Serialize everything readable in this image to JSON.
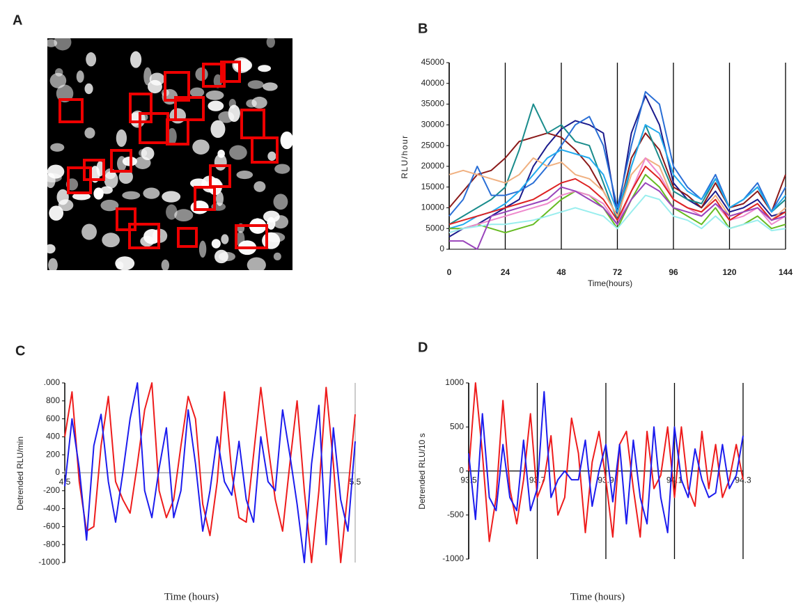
{
  "image_panel": {
    "panel_label": "A"
  },
  "chart_data": [
    {
      "type": "line",
      "panel_label": "B",
      "y_label": "RLU/hour",
      "x_label": "Time(hours)",
      "xlim": [
        0,
        144
      ],
      "xticks": [
        0,
        24,
        48,
        72,
        96,
        120,
        144
      ],
      "xgrid": true,
      "ylim": [
        0,
        45000
      ],
      "yticks": [
        0,
        5000,
        10000,
        15000,
        20000,
        25000,
        30000,
        35000,
        40000,
        45000
      ],
      "x": [
        0,
        6,
        12,
        18,
        24,
        30,
        36,
        42,
        48,
        54,
        60,
        66,
        72,
        78,
        84,
        90,
        96,
        102,
        108,
        114,
        120,
        126,
        132,
        138,
        144
      ],
      "series": [
        {
          "color": "#1a1a8c",
          "values": [
            3000,
            5000,
            6000,
            8000,
            10000,
            12000,
            20000,
            25000,
            29000,
            31000,
            30000,
            28000,
            8000,
            28000,
            37000,
            30000,
            16000,
            12000,
            10000,
            14000,
            9000,
            10000,
            12000,
            8000,
            9000
          ]
        },
        {
          "color": "#8b1a1a",
          "values": [
            10000,
            14000,
            18000,
            19000,
            22000,
            26000,
            27000,
            28000,
            27000,
            24000,
            20000,
            14000,
            8000,
            22000,
            28000,
            24000,
            15000,
            13000,
            10000,
            16000,
            10000,
            11000,
            14000,
            9000,
            18000
          ]
        },
        {
          "color": "#1a8c8c",
          "values": [
            6000,
            8000,
            10000,
            12000,
            15000,
            24000,
            35000,
            28000,
            30000,
            26000,
            25000,
            16000,
            7000,
            20000,
            30000,
            22000,
            14000,
            12000,
            11000,
            17000,
            10000,
            12000,
            15000,
            9000,
            12000
          ]
        },
        {
          "color": "#2a6fd6",
          "values": [
            8000,
            12000,
            20000,
            13000,
            13000,
            14000,
            16000,
            20000,
            25000,
            30000,
            32000,
            25000,
            10000,
            25000,
            38000,
            35000,
            20000,
            15000,
            12000,
            18000,
            10000,
            12000,
            16000,
            9000,
            15000
          ]
        },
        {
          "color": "#f0b080",
          "values": [
            18000,
            19000,
            18000,
            17000,
            16000,
            18000,
            22000,
            20000,
            21000,
            18000,
            17000,
            14000,
            8000,
            18000,
            22000,
            20000,
            12000,
            10000,
            9000,
            13000,
            8000,
            9000,
            11000,
            7000,
            10000
          ]
        },
        {
          "color": "#22aaee",
          "values": [
            5000,
            6000,
            8000,
            9000,
            11000,
            14000,
            18000,
            22000,
            24000,
            23000,
            22000,
            18000,
            9000,
            20000,
            30000,
            28000,
            18000,
            14000,
            12000,
            17000,
            10000,
            12000,
            15000,
            9000,
            13000
          ]
        },
        {
          "color": "#66bb22",
          "values": [
            5000,
            5000,
            6000,
            5000,
            4000,
            5000,
            6000,
            9000,
            12000,
            14000,
            13000,
            10000,
            5000,
            12000,
            18000,
            15000,
            10000,
            8000,
            6000,
            10000,
            5000,
            6000,
            8000,
            5000,
            6000
          ]
        },
        {
          "color": "#ee88cc",
          "values": [
            4000,
            5000,
            6000,
            7000,
            8000,
            9000,
            10000,
            11000,
            13000,
            14000,
            13000,
            11000,
            6000,
            14000,
            22000,
            18000,
            12000,
            10000,
            8000,
            11000,
            7000,
            8000,
            10000,
            6000,
            8000
          ]
        },
        {
          "color": "#dd2222",
          "values": [
            6000,
            7000,
            8000,
            9000,
            10000,
            11000,
            12000,
            14000,
            16000,
            17000,
            15000,
            12000,
            7000,
            14000,
            20000,
            17000,
            12000,
            10000,
            9000,
            12000,
            7000,
            9000,
            11000,
            7000,
            9000
          ]
        },
        {
          "color": "#99eeee",
          "values": [
            4000,
            5000,
            5500,
            6000,
            6000,
            6500,
            7000,
            8000,
            9000,
            10000,
            9000,
            8000,
            5000,
            9000,
            13000,
            12000,
            8000,
            7000,
            5000,
            8000,
            5000,
            6000,
            7000,
            4500,
            5000
          ]
        },
        {
          "color": "#9944bb",
          "values": [
            2000,
            2000,
            0,
            8000,
            9000,
            10000,
            11000,
            12000,
            15000,
            14000,
            12000,
            10000,
            6000,
            12000,
            16000,
            14000,
            10000,
            9000,
            8000,
            11000,
            8000,
            9000,
            10000,
            7000,
            8000
          ]
        }
      ]
    },
    {
      "type": "line",
      "panel_label": "C",
      "y_label": "Detrended RLU/min",
      "x_label": "Time (hours)",
      "xlim": [
        4.5,
        5.5
      ],
      "xticks": [
        4.5,
        5.5
      ],
      "x_tick_position": "zero",
      "zero_line": true,
      "right_axis_line": true,
      "ylim": [
        -1000,
        1000
      ],
      "yticks": [
        -1000,
        -800,
        -600,
        -400,
        -200,
        0,
        200,
        400,
        600,
        800,
        {
          "value": 1000,
          "label": ".000"
        }
      ],
      "x": [
        4.5,
        4.525,
        4.55,
        4.575,
        4.6,
        4.625,
        4.65,
        4.675,
        4.7,
        4.725,
        4.75,
        4.775,
        4.8,
        4.825,
        4.85,
        4.875,
        4.9,
        4.925,
        4.95,
        4.975,
        5.0,
        5.025,
        5.05,
        5.075,
        5.1,
        5.125,
        5.15,
        5.175,
        5.2,
        5.225,
        5.25,
        5.275,
        5.3,
        5.325,
        5.35,
        5.375,
        5.4,
        5.425,
        5.45,
        5.475,
        5.5
      ],
      "series": [
        {
          "color": "#ee1c1c",
          "values": [
            400,
            900,
            -100,
            -650,
            -600,
            300,
            850,
            -100,
            -300,
            -450,
            100,
            700,
            1000,
            -200,
            -500,
            -300,
            300,
            850,
            600,
            -350,
            -700,
            -100,
            900,
            0,
            -500,
            -550,
            200,
            950,
            300,
            -300,
            -650,
            100,
            800,
            -200,
            -1000,
            -200,
            950,
            100,
            -1000,
            -200,
            650
          ]
        },
        {
          "color": "#1c1cee",
          "values": [
            -150,
            600,
            50,
            -750,
            300,
            650,
            -100,
            -550,
            0,
            600,
            1000,
            -200,
            -500,
            50,
            500,
            -500,
            -200,
            700,
            100,
            -650,
            -200,
            400,
            -100,
            -250,
            350,
            -300,
            -550,
            400,
            -100,
            -200,
            700,
            200,
            -350,
            -1000,
            100,
            750,
            -800,
            500,
            -300,
            -650,
            350
          ]
        }
      ]
    },
    {
      "type": "line",
      "panel_label": "D",
      "y_label": "Detrended RLU/10 s",
      "x_label": "Time (hours)",
      "xlim": [
        93.5,
        94.3
      ],
      "xticks": [
        93.5,
        93.7,
        93.9,
        94.1,
        94.3
      ],
      "xgrid": true,
      "x_tick_position": "zero",
      "zero_line": true,
      "ylim": [
        -1000,
        1000
      ],
      "yticks": [
        -1000,
        -500,
        0,
        500,
        1000
      ],
      "x": [
        93.5,
        93.52,
        93.54,
        93.56,
        93.58,
        93.6,
        93.62,
        93.64,
        93.66,
        93.68,
        93.7,
        93.72,
        93.74,
        93.76,
        93.78,
        93.8,
        93.82,
        93.84,
        93.86,
        93.88,
        93.9,
        93.92,
        93.94,
        93.96,
        93.98,
        94.0,
        94.02,
        94.04,
        94.06,
        94.08,
        94.1,
        94.12,
        94.14,
        94.16,
        94.18,
        94.2,
        94.22,
        94.24,
        94.26,
        94.28,
        94.3
      ],
      "series": [
        {
          "color": "#ee1c1c",
          "values": [
            0,
            1000,
            200,
            -800,
            -300,
            800,
            -200,
            -600,
            -100,
            650,
            -300,
            -100,
            400,
            -500,
            -300,
            600,
            200,
            -700,
            100,
            450,
            -100,
            -750,
            300,
            450,
            -200,
            -750,
            450,
            -200,
            -50,
            500,
            -300,
            500,
            -200,
            -400,
            450,
            -200,
            300,
            -300,
            -100,
            300,
            -100
          ]
        },
        {
          "color": "#1c1cee",
          "values": [
            200,
            -550,
            650,
            -300,
            -450,
            300,
            -300,
            -450,
            350,
            -450,
            -200,
            900,
            -300,
            -100,
            0,
            -100,
            -100,
            350,
            -400,
            0,
            300,
            -350,
            300,
            -600,
            350,
            -300,
            -600,
            500,
            -300,
            -700,
            500,
            -100,
            -300,
            250,
            -100,
            -300,
            -250,
            300,
            -200,
            -50,
            400
          ]
        }
      ]
    }
  ]
}
